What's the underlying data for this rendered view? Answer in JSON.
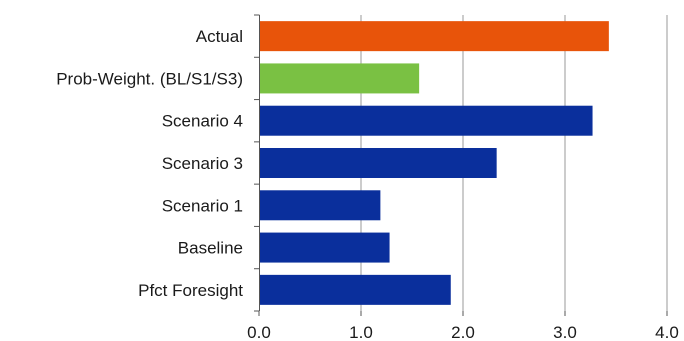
{
  "chart_data": {
    "type": "bar",
    "orientation": "horizontal",
    "title": "",
    "xlabel": "",
    "ylabel": "",
    "xlim": [
      0,
      4.0
    ],
    "x_ticks": [
      "0.0",
      "1.0",
      "2.0",
      "3.0",
      "4.0"
    ],
    "grid": true,
    "legend": "none",
    "categories": [
      "Actual",
      "Prob-Weight. (BL/S1/S3)",
      "Scenario 4",
      "Scenario 3",
      "Scenario 1",
      "Baseline",
      "Pfct Foresight"
    ],
    "values": [
      3.43,
      1.57,
      3.27,
      2.33,
      1.19,
      1.28,
      1.88
    ],
    "colors": [
      "#e8540a",
      "#7ac143",
      "#0a2f9c",
      "#0a2f9c",
      "#0a2f9c",
      "#0a2f9c",
      "#0a2f9c"
    ]
  }
}
